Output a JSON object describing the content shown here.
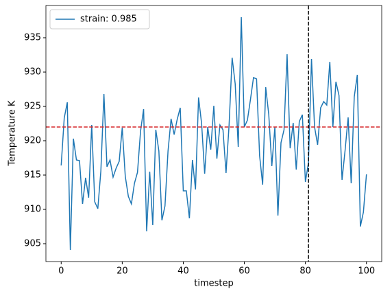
{
  "chart_data": {
    "type": "line",
    "xlabel": "timestep",
    "ylabel": "Temperature K",
    "x": [
      0,
      1,
      2,
      3,
      4,
      5,
      6,
      7,
      8,
      9,
      10,
      11,
      12,
      13,
      14,
      15,
      16,
      17,
      18,
      19,
      20,
      21,
      22,
      23,
      24,
      25,
      26,
      27,
      28,
      29,
      30,
      31,
      32,
      33,
      34,
      35,
      36,
      37,
      38,
      39,
      40,
      41,
      42,
      43,
      44,
      45,
      46,
      47,
      48,
      49,
      50,
      51,
      52,
      53,
      54,
      55,
      56,
      57,
      58,
      59,
      60,
      61,
      62,
      63,
      64,
      65,
      66,
      67,
      68,
      69,
      70,
      71,
      72,
      73,
      74,
      75,
      76,
      77,
      78,
      79,
      80,
      81,
      82,
      83,
      84,
      85,
      86,
      87,
      88,
      89,
      90,
      91,
      92,
      93,
      94,
      95,
      96,
      97,
      98,
      99,
      100
    ],
    "series": [
      {
        "name": "strain: 0.985",
        "color": "#1f77b4",
        "values": [
          916.4,
          923.3,
          925.6,
          904.1,
          920.3,
          917.2,
          917.1,
          910.8,
          914.6,
          911.7,
          922.3,
          911.1,
          910.1,
          915.6,
          926.8,
          916.2,
          917.2,
          914.7,
          916.0,
          917.0,
          921.9,
          914.8,
          911.9,
          910.8,
          913.8,
          915.4,
          921.4,
          924.6,
          906.8,
          915.5,
          907.7,
          921.6,
          918.5,
          908.4,
          910.5,
          918.5,
          923.2,
          920.9,
          923.1,
          924.8,
          912.7,
          912.7,
          908.7,
          917.2,
          912.9,
          926.3,
          922.5,
          915.2,
          922.0,
          918.7,
          925.1,
          917.4,
          922.3,
          921.6,
          915.3,
          922.3,
          932.1,
          928.3,
          919.1,
          938.0,
          922.0,
          923.0,
          926.0,
          929.2,
          929.0,
          917.8,
          913.6,
          927.8,
          923.8,
          916.3,
          922.0,
          909.1,
          919.7,
          921.6,
          932.6,
          918.9,
          922.6,
          915.8,
          922.8,
          923.8,
          914.0,
          916.8,
          931.9,
          922.0,
          919.4,
          924.8,
          925.7,
          925.2,
          931.5,
          922.0,
          928.6,
          926.6,
          914.3,
          918.6,
          923.4,
          913.8,
          926.4,
          929.6,
          907.5,
          909.6,
          915.1
        ]
      }
    ],
    "hline": {
      "value": 922,
      "color": "#d62728"
    },
    "vline": {
      "value": 81,
      "color": "#000000"
    },
    "xlim": [
      -5,
      105
    ],
    "xticks": [
      0,
      20,
      40,
      60,
      80,
      100
    ],
    "ylim": [
      902.4,
      939.7
    ],
    "yticks": [
      905,
      910,
      915,
      920,
      925,
      930,
      935
    ],
    "legend": "upper left",
    "grid": false
  }
}
